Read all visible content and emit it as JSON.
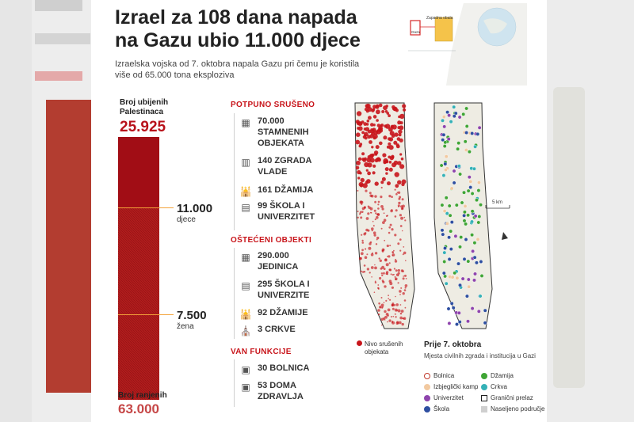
{
  "title": "Izrael za 108 dana napada na Gazu ubio 11.000 djece",
  "subtitle": "Izraelska vojska od 7. oktobra napala Gazu pri čemu je koristila više od 65.000 tona eksploziva",
  "inset_map": {
    "labels": [
      "Zapadna obala",
      "Gaza"
    ]
  },
  "casualties": {
    "killed_label": "Broj ubijenih Palestinaca",
    "killed_value": "25.925",
    "children_value": "11.000",
    "children_label": "djece",
    "women_value": "7.500",
    "women_label": "žena",
    "injured_label": "Broj ranjenih",
    "injured_value": "63.000",
    "colors": {
      "killed": "#a10d15",
      "children": "#b71c1c",
      "injured": "#b11d1d",
      "marker": "#f3a33a"
    }
  },
  "sections": [
    {
      "heading": "POTPUNO SRUŠENO",
      "items": [
        {
          "icon": "buildings-rubble-icon",
          "glyph": "▦",
          "text": "70.000 STAMNENIH OBJEKATA"
        },
        {
          "icon": "government-building-icon",
          "glyph": "▥",
          "text": "140 ZGRADA VLADE"
        },
        {
          "icon": "mosque-icon",
          "glyph": "🕌",
          "text": "161 DŽAMIJA"
        },
        {
          "icon": "school-icon",
          "glyph": "▤",
          "text": "99 ŠKOLA I UNIVERZITET"
        }
      ]
    },
    {
      "heading": "OŠTEĆENI OBJEKTI",
      "items": [
        {
          "icon": "damaged-housing-icon",
          "glyph": "▦",
          "text": "290.000 JEDINICA"
        },
        {
          "icon": "school-icon",
          "glyph": "▤",
          "text": "295 ŠKOLA I UNIVERZITE"
        },
        {
          "icon": "mosque-icon",
          "glyph": "🕌",
          "text": "92 DŽAMIJE"
        },
        {
          "icon": "church-icon",
          "glyph": "⛪",
          "text": "3 CRKVE"
        }
      ]
    },
    {
      "heading": "VAN FUNKCIJE",
      "items": [
        {
          "icon": "hospital-icon",
          "glyph": "▣",
          "text": "30 BOLNICA"
        },
        {
          "icon": "health-center-icon",
          "glyph": "▣",
          "text": "53 DOMA ZDRAVLJA"
        }
      ]
    }
  ],
  "maps": {
    "scale_label": "5 km",
    "destruction_legend": "Nivo srušenih objekata",
    "caption_title": "Prije 7. oktobra",
    "caption_sub": "Mjesta civilnih zgrada i institucija u Gazi",
    "legend": [
      {
        "label": "Bolnica",
        "color": "#ffffff",
        "border": "#c0392b"
      },
      {
        "label": "Džamija",
        "color": "#3fa535",
        "border": "#3fa535"
      },
      {
        "label": "Izbjeglički kamp",
        "color": "#f2c9a0",
        "border": "#e3a36b"
      },
      {
        "label": "Crkva",
        "color": "#34b1b7",
        "border": "#34b1b7"
      },
      {
        "label": "Univerzitet",
        "color": "#8e44ad",
        "border": "#8e44ad"
      },
      {
        "label": "Granični prelaz",
        "color": "#ffffff",
        "border": "#222222"
      },
      {
        "label": "Škola",
        "color": "#2e4fa1",
        "border": "#2e4fa1"
      },
      {
        "label": "Naseljeno područje",
        "color": "#cfcfcf",
        "border": "#cfcfcf"
      }
    ]
  }
}
